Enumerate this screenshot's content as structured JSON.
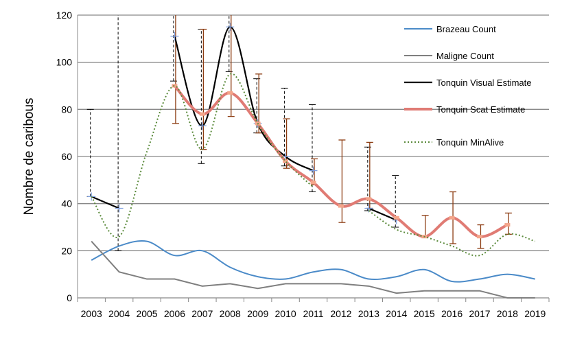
{
  "chart_data": {
    "type": "line",
    "ylabel": "Nombre de caribous",
    "ylim": [
      0,
      120
    ],
    "yticks": [
      0,
      20,
      40,
      60,
      80,
      100,
      120
    ],
    "grid": true,
    "legend": "right",
    "categories": [
      "2003",
      "2004",
      "2005",
      "2006",
      "2007",
      "2008",
      "2009",
      "2010",
      "2011",
      "2012",
      "2013",
      "2014",
      "2015",
      "2016",
      "2017",
      "2018",
      "2019"
    ],
    "series": [
      {
        "name": "Brazeau Count",
        "color": "#4a8ac8",
        "values": [
          16,
          22,
          24,
          18,
          20,
          13,
          9,
          8,
          11,
          12,
          8,
          9,
          12,
          7,
          8,
          10,
          8
        ]
      },
      {
        "name": "Maligne Count",
        "color": "#7f7f7f",
        "values": [
          24,
          11,
          8,
          8,
          5,
          6,
          4,
          6,
          6,
          6,
          5,
          2,
          3,
          3,
          3,
          0,
          0
        ]
      },
      {
        "name": "Tonquin Visual Estimate",
        "color": "#000000",
        "values": [
          43,
          38,
          null,
          111,
          73,
          115,
          74,
          60,
          54,
          null,
          38,
          33,
          null,
          null,
          null,
          null,
          null
        ],
        "error_low": [
          43,
          20,
          null,
          92,
          57,
          96,
          70,
          56,
          45,
          null,
          37,
          30,
          null,
          null,
          null,
          null,
          null
        ],
        "error_high": [
          80,
          120,
          null,
          120,
          114,
          120,
          93,
          89,
          82,
          null,
          64,
          52,
          null,
          null,
          null,
          null,
          null
        ]
      },
      {
        "name": "Tonquin Scat Estimate",
        "color": "#e07b74",
        "values": [
          null,
          null,
          null,
          90,
          78,
          87,
          74,
          58,
          49,
          39,
          42,
          34,
          26,
          34,
          26,
          31,
          null
        ],
        "error_low": [
          null,
          null,
          null,
          74,
          63,
          77,
          70,
          55,
          48,
          32,
          38,
          null,
          26,
          23,
          21,
          27,
          null
        ],
        "error_high": [
          null,
          null,
          null,
          120,
          114,
          120,
          95,
          76,
          59,
          67,
          66,
          null,
          35,
          45,
          31,
          36,
          null
        ]
      },
      {
        "name": "Tonquin MinAlive",
        "color": "#5a8a3a",
        "values": [
          43,
          26,
          62,
          90,
          63,
          95,
          74,
          58,
          47,
          null,
          37,
          29,
          26,
          22,
          18,
          27,
          24
        ]
      }
    ]
  }
}
